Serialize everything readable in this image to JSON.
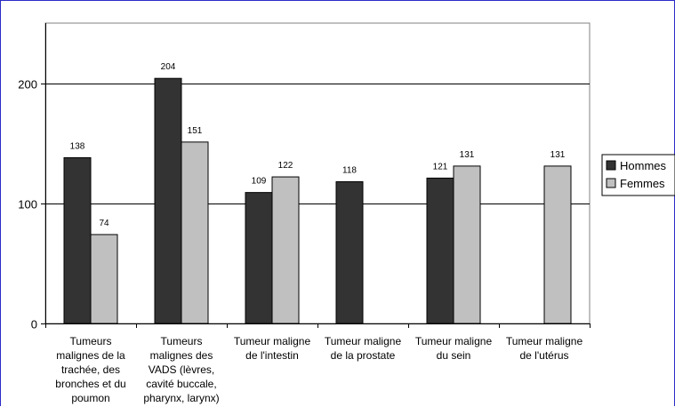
{
  "chart_data": {
    "type": "bar",
    "categories": [
      [
        "Tumeurs",
        "malignes de la",
        "trachée, des",
        "bronches et du",
        "poumon"
      ],
      [
        "Tumeurs",
        "malignes des",
        "VADS (lèvres,",
        "cavité buccale,",
        "pharynx, larynx)"
      ],
      [
        "Tumeur maligne",
        "de l'intestin"
      ],
      [
        "Tumeur maligne",
        "de la prostate"
      ],
      [
        "Tumeur maligne",
        "du sein"
      ],
      [
        "Tumeur maligne",
        "de l'utérus"
      ]
    ],
    "series": [
      {
        "name": "Hommes",
        "color": "#333333",
        "values": [
          138,
          204,
          109,
          118,
          121,
          null
        ]
      },
      {
        "name": "Femmes",
        "color": "#c0c0c0",
        "values": [
          74,
          151,
          122,
          null,
          131,
          131
        ]
      }
    ],
    "ylim": [
      0,
      250
    ],
    "yticks": [
      0,
      100,
      200
    ],
    "grid": true,
    "legend": "right",
    "title": "",
    "xlabel": "",
    "ylabel": ""
  }
}
